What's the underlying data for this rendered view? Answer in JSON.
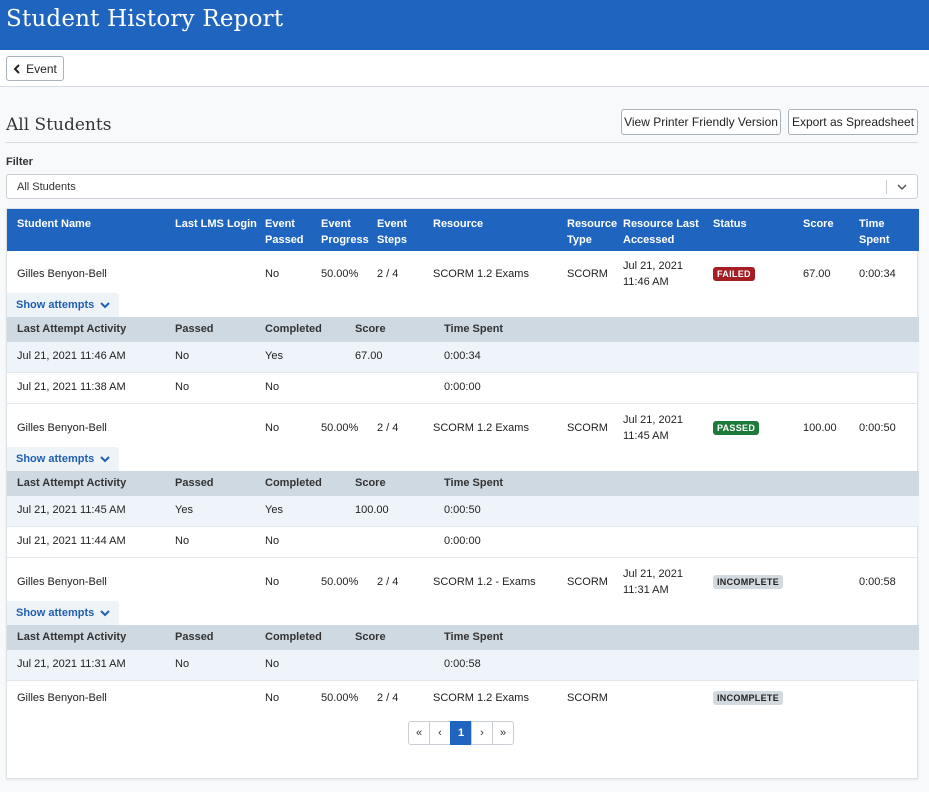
{
  "header": {
    "title": "Student History Report"
  },
  "toolbar": {
    "back_label": "Event"
  },
  "section": {
    "title": "All Students",
    "printer_label": "View Printer Friendly Version",
    "export_label": "Export as Spreadsheet"
  },
  "filter": {
    "label": "Filter",
    "value": "All Students"
  },
  "table": {
    "columns": [
      "Student Name",
      "Last LMS Login",
      "Event Passed",
      "Event Progress",
      "Event Steps",
      "Resource",
      "Resource Type",
      "Resource Last Accessed",
      "Status",
      "Score",
      "Time Spent"
    ],
    "columns_display": [
      [
        "Student Name"
      ],
      [
        "Last LMS Login"
      ],
      [
        "Event",
        "Passed"
      ],
      [
        "Event",
        "Progress"
      ],
      [
        "Event",
        "Steps"
      ],
      [
        "Resource"
      ],
      [
        "Resource",
        "Type"
      ],
      [
        "Resource Last",
        "Accessed"
      ],
      [
        "Status"
      ],
      [
        "Score"
      ],
      [
        "Time",
        "Spent"
      ]
    ],
    "show_attempts_label": "Show attempts",
    "attempt_columns": [
      "Last Attempt Activity",
      "Passed",
      "Completed",
      "Score",
      "Time Spent"
    ],
    "rows": [
      {
        "name": "Gilles Benyon-Bell",
        "last_login": "",
        "passed": "No",
        "progress": "50.00%",
        "steps": "2 / 4",
        "resource": "SCORM 1.2 Exams",
        "resource_type": "SCORM",
        "accessed_1": "Jul 21, 2021",
        "accessed_2": "11:46 AM",
        "status": "FAILED",
        "status_kind": "failed",
        "score": "67.00",
        "time": "0:00:34",
        "attempts": [
          {
            "activity": "Jul 21, 2021 11:46 AM",
            "passed": "No",
            "completed": "Yes",
            "score": "67.00",
            "time": "0:00:34"
          },
          {
            "activity": "Jul 21, 2021 11:38 AM",
            "passed": "No",
            "completed": "No",
            "score": "",
            "time": "0:00:00"
          }
        ]
      },
      {
        "name": "Gilles Benyon-Bell",
        "last_login": "",
        "passed": "No",
        "progress": "50.00%",
        "steps": "2 / 4",
        "resource": "SCORM 1.2 Exams",
        "resource_type": "SCORM",
        "accessed_1": "Jul 21, 2021",
        "accessed_2": "11:45 AM",
        "status": "PASSED",
        "status_kind": "passed",
        "score": "100.00",
        "time": "0:00:50",
        "attempts": [
          {
            "activity": "Jul 21, 2021 11:45 AM",
            "passed": "Yes",
            "completed": "Yes",
            "score": "100.00",
            "time": "0:00:50"
          },
          {
            "activity": "Jul 21, 2021 11:44 AM",
            "passed": "No",
            "completed": "No",
            "score": "",
            "time": "0:00:00"
          }
        ]
      },
      {
        "name": "Gilles Benyon-Bell",
        "last_login": "",
        "passed": "No",
        "progress": "50.00%",
        "steps": "2 / 4",
        "resource": "SCORM 1.2 - Exams",
        "resource_type": "SCORM",
        "accessed_1": "Jul 21, 2021",
        "accessed_2": "11:31 AM",
        "status": "INCOMPLETE",
        "status_kind": "incomplete",
        "score": "",
        "time": "0:00:58",
        "attempts": [
          {
            "activity": "Jul 21, 2021 11:31 AM",
            "passed": "No",
            "completed": "No",
            "score": "",
            "time": "0:00:58"
          }
        ]
      },
      {
        "name": "Gilles Benyon-Bell",
        "last_login": "",
        "passed": "No",
        "progress": "50.00%",
        "steps": "2 / 4",
        "resource": "SCORM 1.2 Exams",
        "resource_type": "SCORM",
        "accessed_1": "",
        "accessed_2": "",
        "status": "INCOMPLETE",
        "status_kind": "incomplete",
        "score": "",
        "time": "",
        "attempts": []
      }
    ]
  },
  "pagination": {
    "first": "«",
    "prev": "‹",
    "current": "1",
    "next": "›",
    "last": "»"
  },
  "colors": {
    "primary": "#1f65c0",
    "failed": "#a61d24",
    "passed": "#1e7a3c",
    "incomplete": "#d2d9df"
  }
}
